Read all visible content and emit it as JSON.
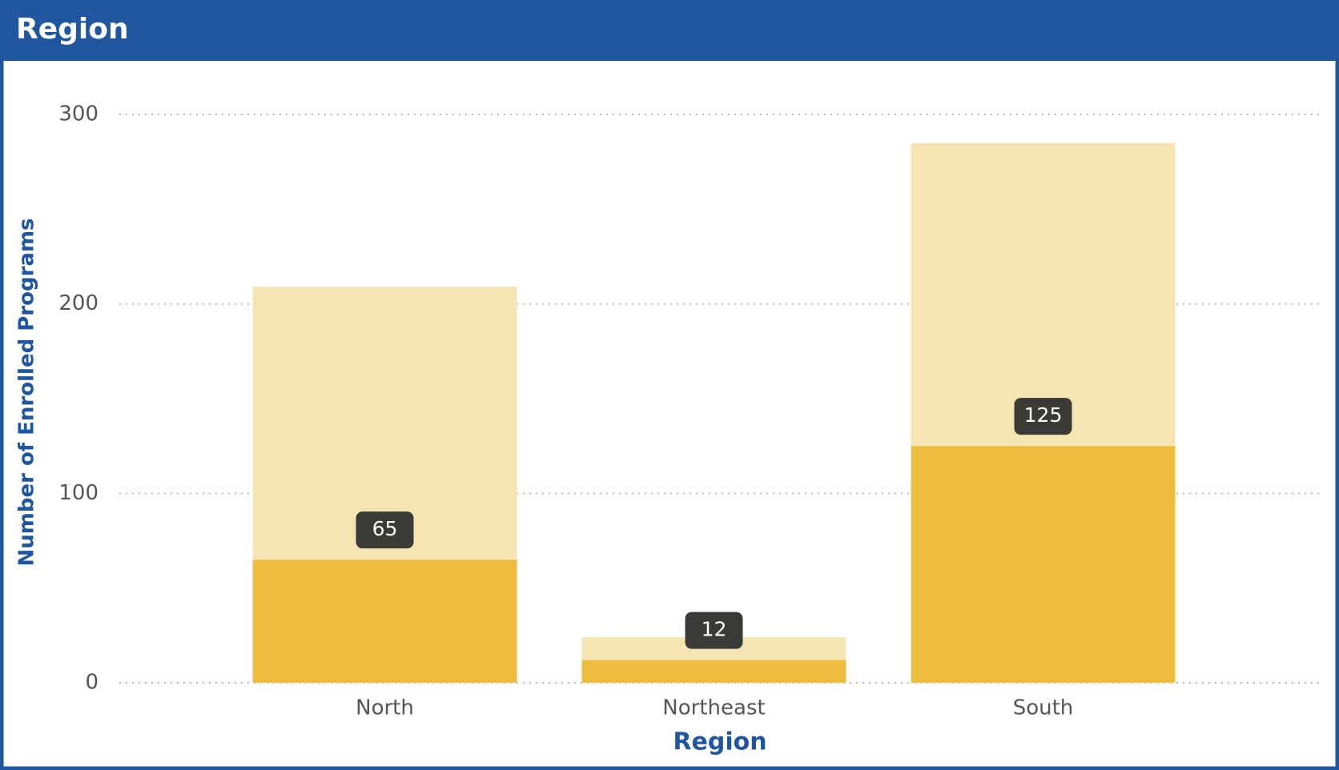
{
  "chart_data": {
    "type": "stacked_bar",
    "title": "Region",
    "x_label": "Region",
    "y_label": "Number of Enrolled Programs",
    "categories": [
      "North",
      "Northeast",
      "South"
    ],
    "series": [
      {
        "color": "#eebd3f",
        "values": [
          65,
          12,
          125
        ],
        "show_labels": true
      },
      {
        "color": "#f5e5b3",
        "values": [
          144,
          12,
          160
        ],
        "show_labels": false
      }
    ],
    "ylim": [
      0,
      300
    ],
    "yticks": [
      0,
      100,
      200,
      300
    ],
    "grid": true
  }
}
